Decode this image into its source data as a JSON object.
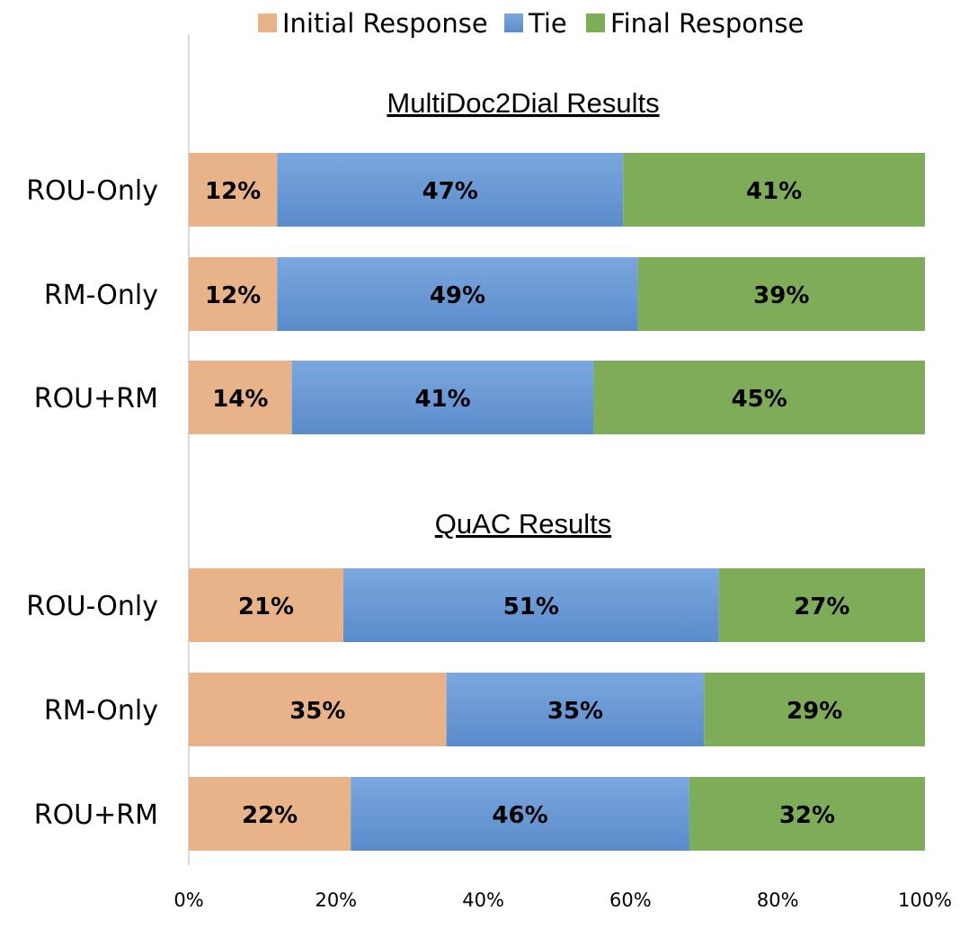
{
  "chart_data": {
    "type": "bar",
    "orientation": "horizontal",
    "stacked": true,
    "percent": true,
    "legend_position": "top",
    "xlim": [
      0,
      100
    ],
    "xticks": [
      "0%",
      "20%",
      "40%",
      "60%",
      "80%",
      "100%"
    ],
    "grid": false,
    "series_meta": [
      {
        "name": "Initial Response",
        "color": "#E9B38A"
      },
      {
        "name": "Tie",
        "color": "#6A9AD6"
      },
      {
        "name": "Final Response",
        "color": "#7FAC58"
      }
    ],
    "groups": [
      {
        "title": "MultiDoc2Dial Results",
        "rows": [
          {
            "category": "ROU-Only",
            "values": [
              12,
              47,
              41
            ],
            "labels": [
              "12%",
              "47%",
              "41%"
            ]
          },
          {
            "category": "RM-Only",
            "values": [
              12,
              49,
              39
            ],
            "labels": [
              "12%",
              "49%",
              "39%"
            ]
          },
          {
            "category": "ROU+RM",
            "values": [
              14,
              41,
              45
            ],
            "labels": [
              "14%",
              "41%",
              "45%"
            ]
          }
        ]
      },
      {
        "title": "QuAC Results",
        "rows": [
          {
            "category": "ROU-Only",
            "values": [
              21,
              51,
              27
            ],
            "labels": [
              "21%",
              "51%",
              "27%"
            ]
          },
          {
            "category": "RM-Only",
            "values": [
              35,
              35,
              29
            ],
            "labels": [
              "35%",
              "35%",
              "29%"
            ]
          },
          {
            "category": "ROU+RM",
            "values": [
              22,
              46,
              32
            ],
            "labels": [
              "22%",
              "46%",
              "32%"
            ]
          }
        ]
      }
    ]
  }
}
